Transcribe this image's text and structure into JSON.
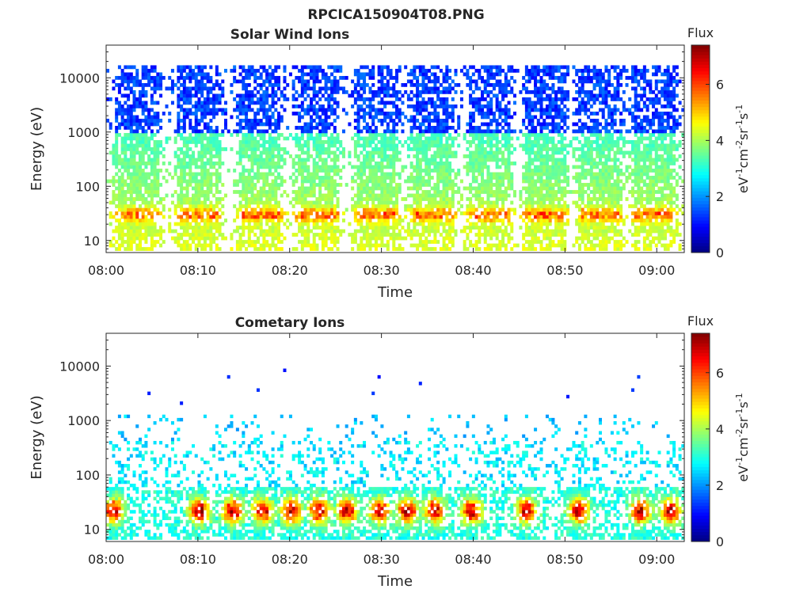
{
  "figure_title": "RPCICA150904T08.PNG",
  "chart_data": [
    {
      "type": "heatmap",
      "title": "Solar Wind Ions",
      "xlabel": "Time",
      "ylabel": "Energy (eV)",
      "y_scale": "log",
      "ylim": [
        6,
        40000
      ],
      "y_ticks": [
        10,
        100,
        1000,
        10000
      ],
      "y_tick_labels": [
        "10",
        "100",
        "1000",
        "10000"
      ],
      "xlim": [
        "08:00",
        "09:03"
      ],
      "x_ticks": [
        "08:00",
        "08:10",
        "08:20",
        "08:30",
        "08:40",
        "08:50",
        "09:00"
      ],
      "colorbar": {
        "title": "Flux",
        "label_parts": [
          "eV",
          "-1",
          "cm",
          "-2",
          "sr",
          "-1",
          "s",
          "-1"
        ],
        "ticks": [
          "0",
          "2",
          "4",
          "6"
        ],
        "range": [
          0,
          7.4
        ],
        "colormap": "jet"
      },
      "pattern": {
        "description_type": "periodic-bursts",
        "burst_centers_min": [
          3.5,
          10.0,
          16.8,
          23.0,
          29.5,
          35.5,
          41.8,
          47.8,
          53.8,
          59.7
        ],
        "burst_width_min": 3.5,
        "peak_energy_eV": 30,
        "peak_flux": 5.2,
        "max_energy_eV": 17000
      }
    },
    {
      "type": "heatmap",
      "title": "Cometary Ions",
      "xlabel": "Time",
      "ylabel": "Energy (eV)",
      "y_scale": "log",
      "ylim": [
        6,
        40000
      ],
      "y_ticks": [
        10,
        100,
        1000,
        10000
      ],
      "y_tick_labels": [
        "10",
        "100",
        "1000",
        "10000"
      ],
      "xlim": [
        "08:00",
        "09:03"
      ],
      "x_ticks": [
        "08:00",
        "08:10",
        "08:20",
        "08:30",
        "08:40",
        "08:50",
        "09:00"
      ],
      "colorbar": {
        "title": "Flux",
        "label_parts": [
          "eV",
          "-1",
          "cm",
          "-2",
          "sr",
          "-1",
          "s",
          "-1"
        ],
        "ticks": [
          "0",
          "2",
          "4",
          "6"
        ],
        "range": [
          0,
          7.4
        ],
        "colormap": "jet"
      },
      "pattern": {
        "description_type": "low-energy-blobs",
        "blob_centers_min": [
          0.8,
          10.2,
          13.8,
          17.0,
          20.2,
          23.2,
          26.2,
          29.8,
          32.8,
          35.8,
          39.8,
          45.8,
          51.5,
          58.2,
          61.5
        ],
        "peak_energy_eV": 22,
        "peak_flux": 7.0,
        "max_energy_eV": 9000
      }
    }
  ]
}
